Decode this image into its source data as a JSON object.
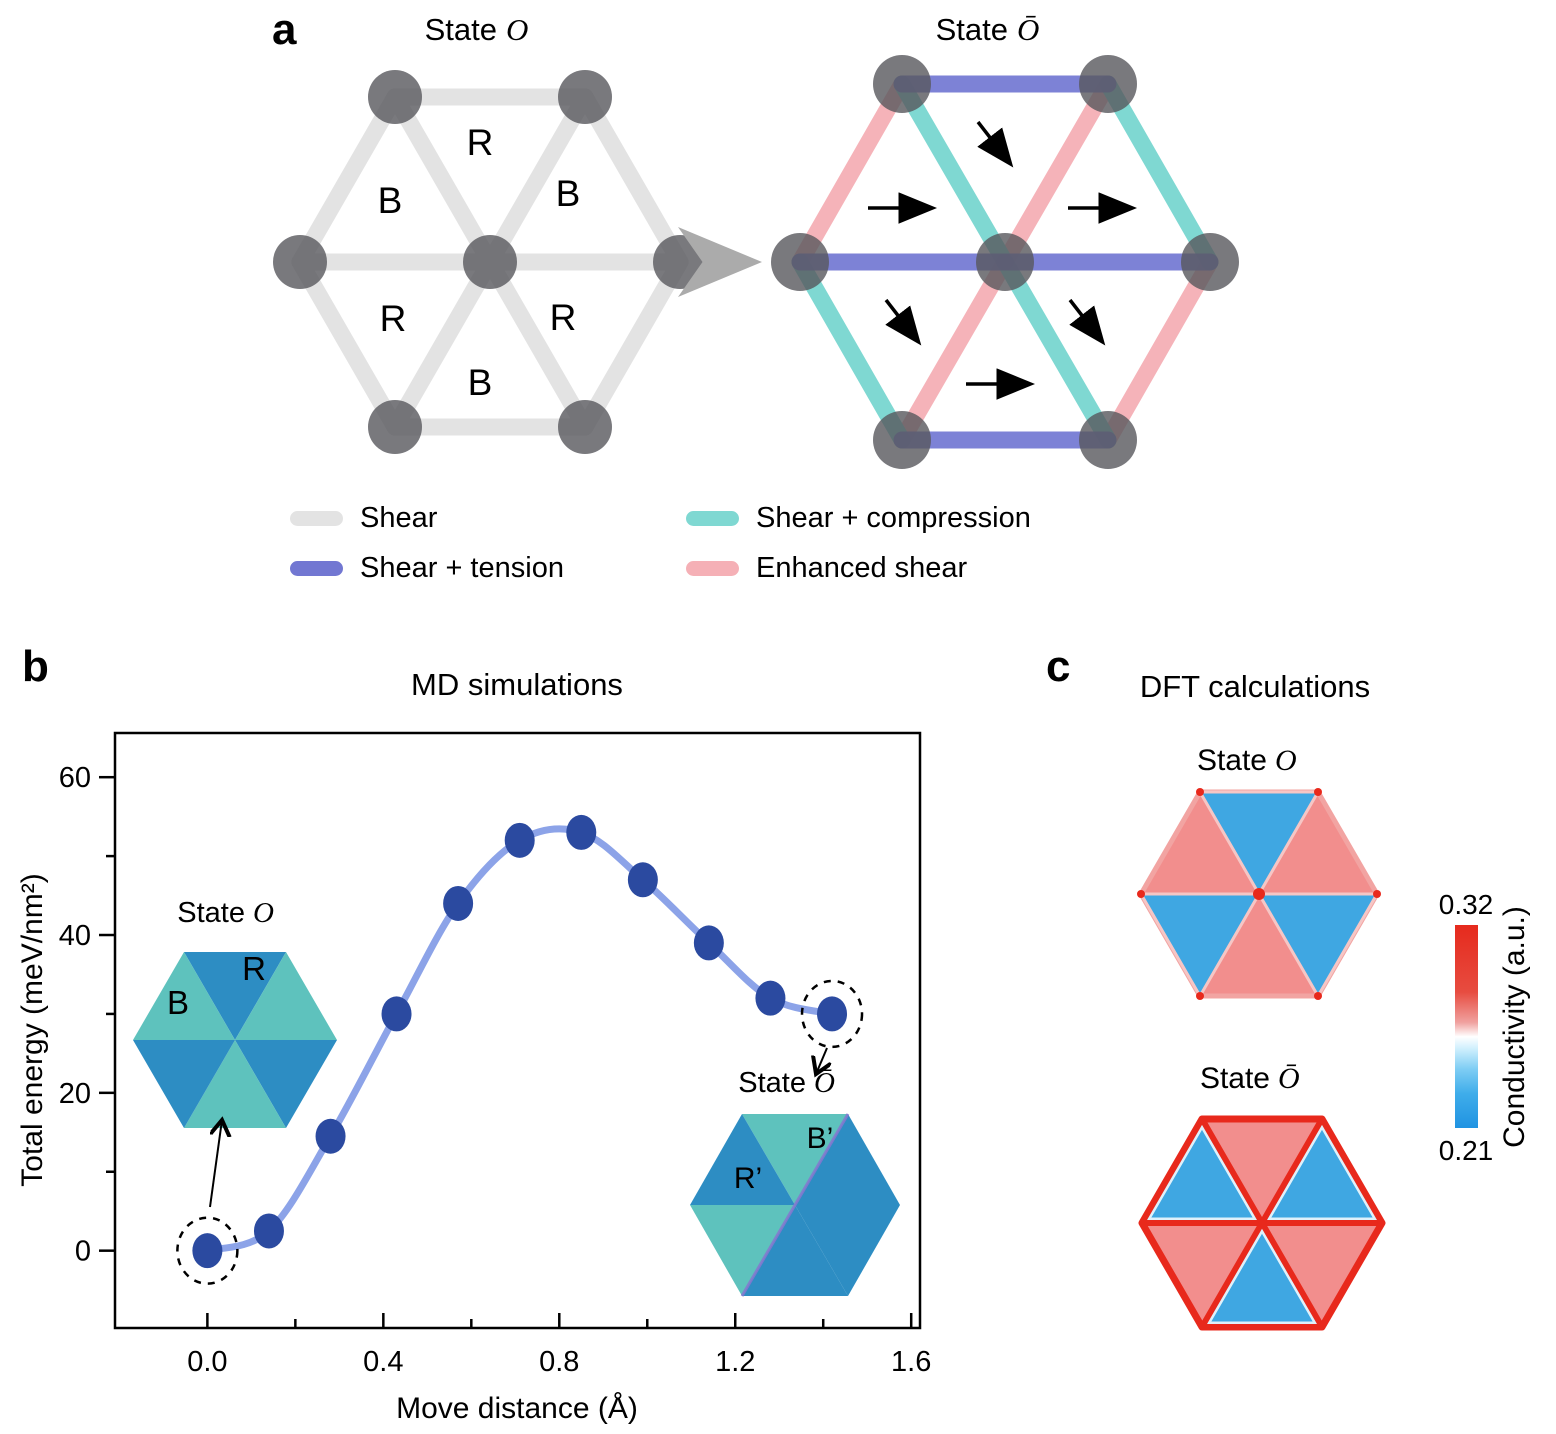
{
  "panel_a": {
    "label": "a",
    "state_o": {
      "title_prefix": "State",
      "title_symbol": "O"
    },
    "state_obar": {
      "title_prefix": "State",
      "title_symbol": "Ō"
    },
    "regions": {
      "top": "R",
      "upper_left": "B",
      "upper_right": "B",
      "lower_left": "R",
      "lower_right": "R",
      "bottom": "B"
    },
    "legend": {
      "shear": {
        "label": "Shear",
        "color": "#e3e3e3"
      },
      "tension": {
        "label": "Shear + tension",
        "color": "#7277d2"
      },
      "compression": {
        "label": "Shear + compression",
        "color": "#7fd8d2"
      },
      "enhanced": {
        "label": "Enhanced shear",
        "color": "#f5b0b6"
      }
    }
  },
  "panel_b": {
    "label": "b",
    "title": "MD simulations",
    "chart_data": {
      "type": "line",
      "x": [
        0.0,
        0.14,
        0.28,
        0.43,
        0.57,
        0.71,
        0.85,
        0.99,
        1.14,
        1.28,
        1.42
      ],
      "y": [
        0,
        2.5,
        14.5,
        30,
        44,
        52,
        53,
        47,
        39,
        32,
        30
      ],
      "xlabel": "Move distance (Å)",
      "ylabel": "Total energy (meV/nm²)",
      "x_ticks": [
        0.0,
        0.4,
        0.8,
        1.2,
        1.6
      ],
      "x_minor_ticks": [
        0.2,
        0.6,
        1.0,
        1.4
      ],
      "y_ticks": [
        0,
        20,
        40,
        60
      ],
      "y_minor_ticks": [
        10,
        30,
        50
      ],
      "xlim": [
        -0.21,
        1.62
      ],
      "ylim": [
        -9.8,
        65.6
      ],
      "grid": false,
      "circled_point_indices": [
        0,
        10
      ],
      "line_color": "#8ca3e8",
      "marker_color": "#2b4aa0"
    },
    "inset_o": {
      "title_prefix": "State",
      "title_symbol": "O",
      "label_r": "R",
      "label_b": "B",
      "dark_color": "#2d8dc3",
      "light_color": "#5ec2bd"
    },
    "inset_obar": {
      "title_prefix": "State",
      "title_symbol": "Ō",
      "label_r": "R’",
      "label_b": "B’"
    }
  },
  "panel_c": {
    "label": "c",
    "title": "DFT calculations",
    "state_o": {
      "title_prefix": "State",
      "title_symbol": "O"
    },
    "state_obar": {
      "title_prefix": "State",
      "title_symbol": "Ō"
    },
    "colors": {
      "high": "#f28e8d",
      "low": "#3fa7e2",
      "wall": "#e8291c"
    },
    "colorbar": {
      "max": "0.32",
      "min": "0.21",
      "label": "Conductivity (a.u.)",
      "top_color": "#e62a1d",
      "bottom_color": "#2093e2"
    }
  }
}
